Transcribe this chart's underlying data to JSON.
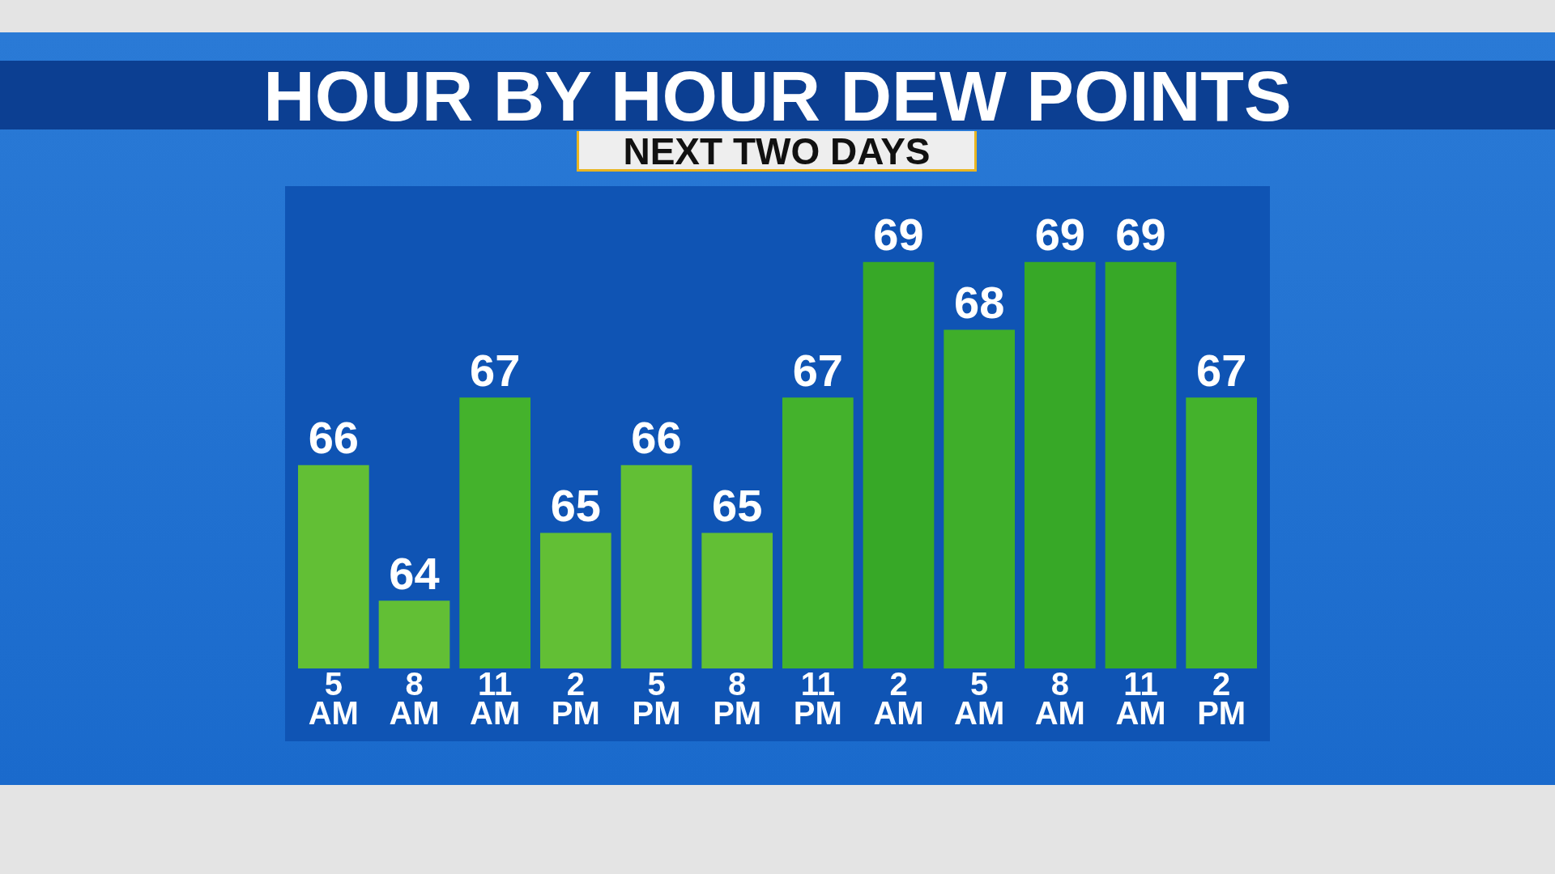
{
  "chart_data": {
    "type": "bar",
    "title": "HOUR BY HOUR DEW POINTS",
    "subtitle": "NEXT TWO DAYS",
    "categories": [
      "5 AM",
      "8 AM",
      "11 AM",
      "2 PM",
      "5 PM",
      "8 PM",
      "11 PM",
      "2 AM",
      "5 AM",
      "8 AM",
      "11 AM",
      "2 PM"
    ],
    "values": [
      66,
      64,
      67,
      65,
      66,
      65,
      67,
      69,
      68,
      69,
      69,
      67
    ],
    "colors": [
      "#62bf35",
      "#62bf35",
      "#44b22c",
      "#62bf35",
      "#62bf35",
      "#62bf35",
      "#44b22c",
      "#37a827",
      "#3fae2a",
      "#37a827",
      "#37a827",
      "#44b22c"
    ],
    "data_labels": true,
    "grid": false,
    "legend": false
  }
}
